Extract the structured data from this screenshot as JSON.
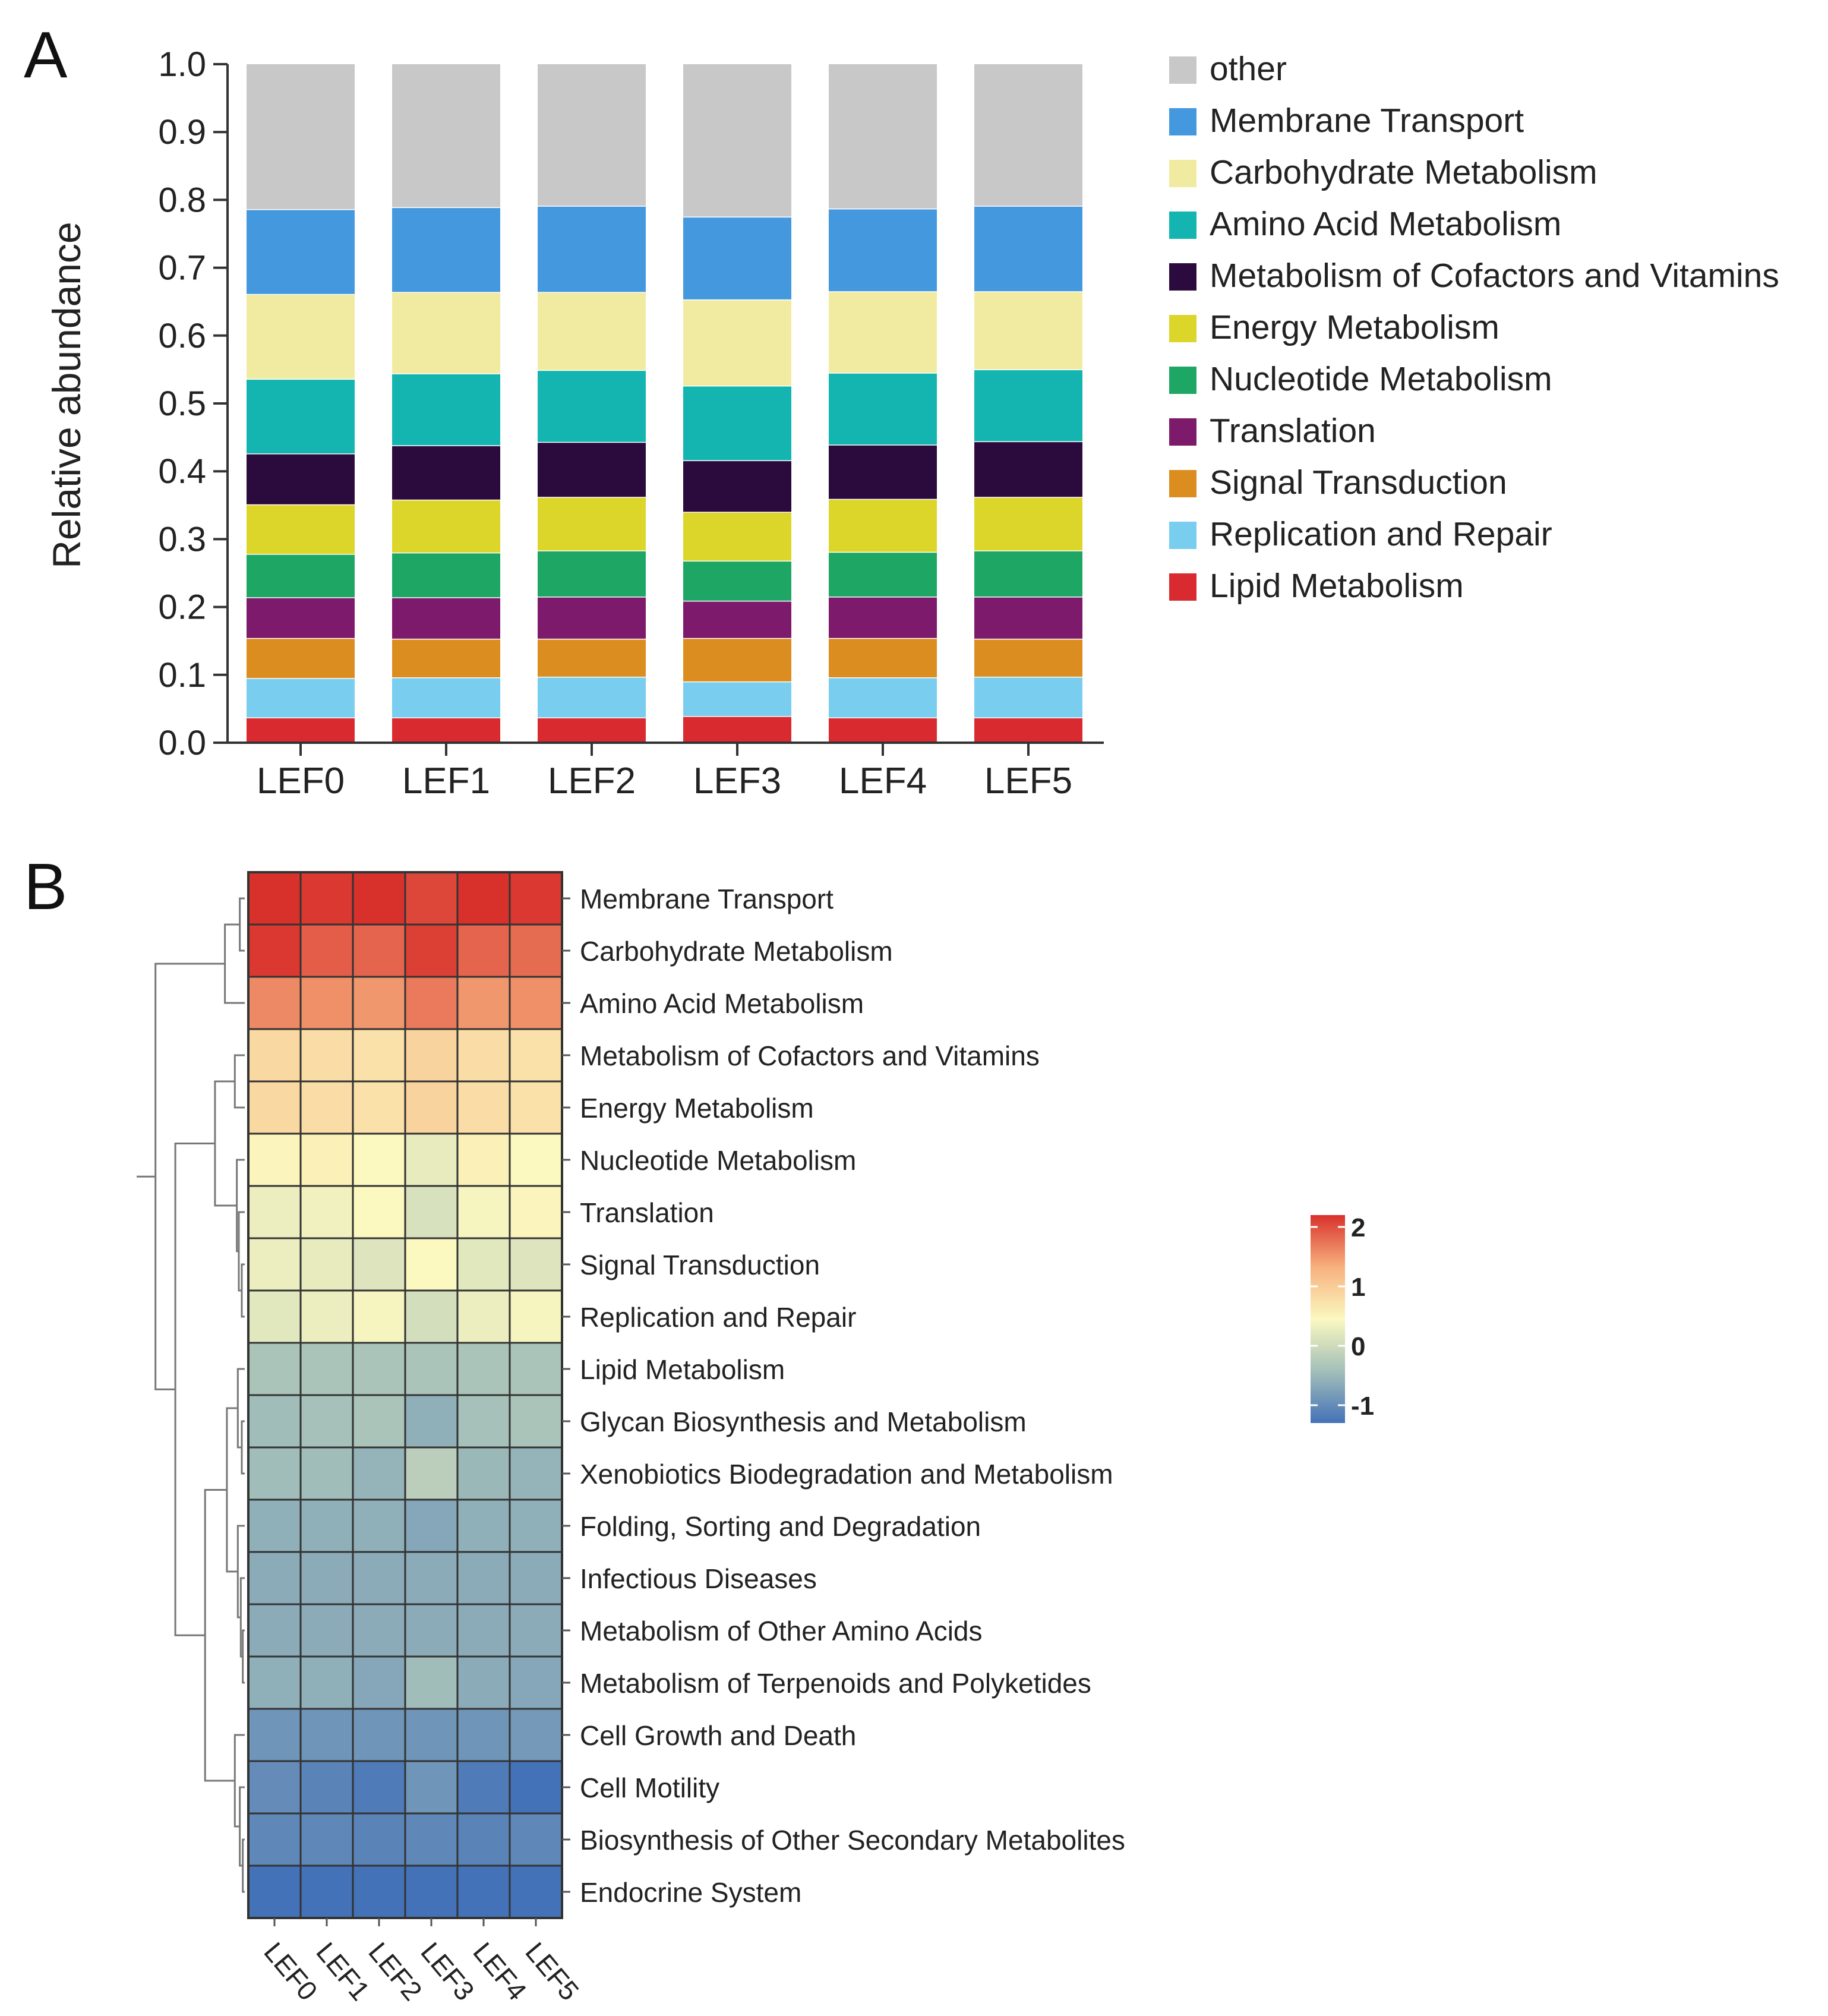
{
  "panels": {
    "a": "A",
    "b": "B"
  },
  "chart_data": [
    {
      "type": "bar",
      "stacked": true,
      "title": "",
      "xlabel": "",
      "ylabel": "Relative abundance",
      "ylim": [
        0,
        1.0
      ],
      "yticks": [
        "0.0",
        "0.1",
        "0.2",
        "0.3",
        "0.4",
        "0.5",
        "0.6",
        "0.7",
        "0.8",
        "0.9",
        "1.0"
      ],
      "categories": [
        "LEF0",
        "LEF1",
        "LEF2",
        "LEF3",
        "LEF4",
        "LEF5"
      ],
      "legend_position": "right",
      "series": [
        {
          "name": "Lipid Metabolism",
          "color": "#d92b2f",
          "values": [
            0.036,
            0.036,
            0.036,
            0.038,
            0.036,
            0.036
          ]
        },
        {
          "name": "Replication and Repair",
          "color": "#79cdee",
          "values": [
            0.058,
            0.059,
            0.06,
            0.051,
            0.059,
            0.06
          ]
        },
        {
          "name": "Signal Transduction",
          "color": "#db8d1f",
          "values": [
            0.059,
            0.057,
            0.056,
            0.064,
            0.058,
            0.056
          ]
        },
        {
          "name": "Translation",
          "color": "#7d1a6b",
          "values": [
            0.06,
            0.061,
            0.062,
            0.055,
            0.061,
            0.062
          ]
        },
        {
          "name": "Nucleotide Metabolism",
          "color": "#1ea764",
          "values": [
            0.064,
            0.066,
            0.068,
            0.059,
            0.066,
            0.068
          ]
        },
        {
          "name": "Energy Metabolism",
          "color": "#dcd52a",
          "values": [
            0.073,
            0.078,
            0.079,
            0.072,
            0.078,
            0.079
          ]
        },
        {
          "name": "Metabolism of Cofactors and Vitamins",
          "color": "#2b0a3d",
          "values": [
            0.075,
            0.08,
            0.081,
            0.076,
            0.08,
            0.082
          ]
        },
        {
          "name": "Amino Acid Metabolism",
          "color": "#14b5b0",
          "values": [
            0.11,
            0.106,
            0.106,
            0.11,
            0.106,
            0.106
          ]
        },
        {
          "name": "Carbohydrate Metabolism",
          "color": "#f0eba0",
          "values": [
            0.125,
            0.12,
            0.115,
            0.127,
            0.12,
            0.115
          ]
        },
        {
          "name": "Membrane Transport",
          "color": "#4499de",
          "values": [
            0.125,
            0.125,
            0.127,
            0.122,
            0.122,
            0.126
          ]
        },
        {
          "name": "other",
          "color": "#c8c8c8",
          "values": [
            0.215,
            0.212,
            0.21,
            0.226,
            0.214,
            0.21
          ]
        }
      ]
    },
    {
      "type": "heatmap",
      "title": "",
      "columns": [
        "LEF0",
        "LEF1",
        "LEF2",
        "LEF3",
        "LEF4",
        "LEF5"
      ],
      "rows": [
        "Membrane Transport",
        "Carbohydrate Metabolism",
        "Amino Acid Metabolism",
        "Metabolism of Cofactors and Vitamins",
        "Energy Metabolism",
        "Nucleotide Metabolism",
        "Translation",
        "Signal Transduction",
        "Replication and Repair",
        "Lipid Metabolism",
        "Glycan Biosynthesis and Metabolism",
        "Xenobiotics Biodegradation and Metabolism",
        "Folding, Sorting and Degradation",
        "Infectious Diseases",
        "Metabolism of Other Amino Acids",
        "Metabolism of Terpenoids and Polyketides",
        "Cell Growth and Death",
        "Cell Motility",
        "Biosynthesis of Other Secondary Metabolites",
        "Endocrine System"
      ],
      "values": [
        [
          2.2,
          2.15,
          2.2,
          2.05,
          2.2,
          2.15
        ],
        [
          2.15,
          1.9,
          1.85,
          2.1,
          1.85,
          1.8
        ],
        [
          1.6,
          1.55,
          1.5,
          1.7,
          1.5,
          1.55
        ],
        [
          0.85,
          0.8,
          0.75,
          0.9,
          0.8,
          0.75
        ],
        [
          0.85,
          0.8,
          0.75,
          0.9,
          0.8,
          0.75
        ],
        [
          0.5,
          0.55,
          0.45,
          0.25,
          0.55,
          0.45
        ],
        [
          0.3,
          0.35,
          0.45,
          0.1,
          0.4,
          0.5
        ],
        [
          0.3,
          0.25,
          0.15,
          0.45,
          0.2,
          0.15
        ],
        [
          0.2,
          0.3,
          0.4,
          0.05,
          0.3,
          0.4
        ],
        [
          -0.35,
          -0.35,
          -0.35,
          -0.35,
          -0.35,
          -0.35
        ],
        [
          -0.45,
          -0.4,
          -0.35,
          -0.6,
          -0.4,
          -0.35
        ],
        [
          -0.45,
          -0.45,
          -0.55,
          -0.2,
          -0.5,
          -0.55
        ],
        [
          -0.6,
          -0.6,
          -0.6,
          -0.7,
          -0.6,
          -0.6
        ],
        [
          -0.65,
          -0.65,
          -0.65,
          -0.65,
          -0.65,
          -0.65
        ],
        [
          -0.65,
          -0.65,
          -0.65,
          -0.65,
          -0.65,
          -0.65
        ],
        [
          -0.6,
          -0.6,
          -0.7,
          -0.45,
          -0.65,
          -0.7
        ],
        [
          -0.9,
          -0.9,
          -0.9,
          -0.9,
          -0.9,
          -0.85
        ],
        [
          -1.0,
          -1.1,
          -1.2,
          -0.9,
          -1.2,
          -1.3
        ],
        [
          -1.05,
          -1.05,
          -1.1,
          -1.05,
          -1.1,
          -1.05
        ],
        [
          -1.3,
          -1.3,
          -1.3,
          -1.3,
          -1.3,
          -1.3
        ]
      ],
      "colorbar": {
        "range": [
          -1.3,
          2.2
        ],
        "ticks": [
          "2",
          "1",
          "0",
          "-1"
        ],
        "tick_values": [
          2,
          1,
          0,
          -1
        ],
        "stops": [
          "#4472b8",
          "#a3bfb9",
          "#fbf8c0",
          "#f7b17e",
          "#d8312c"
        ]
      },
      "dendrogram": "left"
    }
  ]
}
